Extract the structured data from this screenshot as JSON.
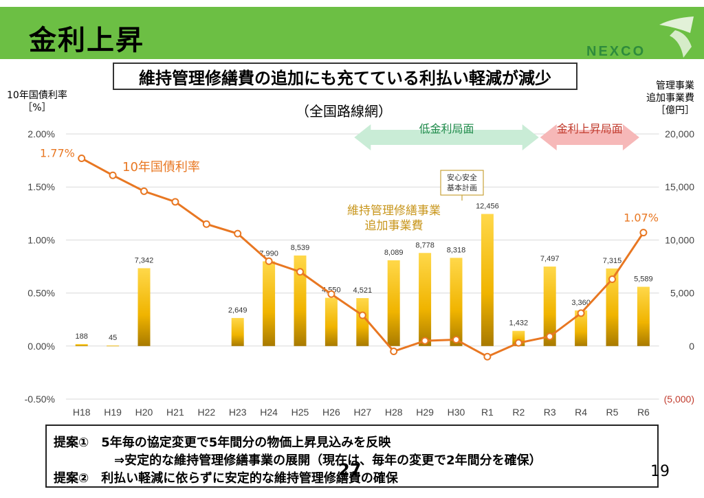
{
  "slide": {
    "title": "金利上昇",
    "logo_text": "NEXCO",
    "subtitle": "維持管理修繕費の追加にも充てている利払い軽減が減少",
    "scope": "（全国路線網）",
    "left_axis_label_line1": "10年国債利率",
    "left_axis_label_line2": "［%］",
    "right_axis_label_line1": "管理事業",
    "right_axis_label_line2": "追加事業費",
    "right_axis_label_line3": "［億円］",
    "page_number": "19",
    "page_overlay": "27"
  },
  "footer": {
    "proposal1": "提案①　5年毎の協定変更で5年間分の物価上昇見込みを反映",
    "proposal1_sub": "⇒安定的な維持管理修繕事業の展開（現在は、毎年の変更で2年間分を確保）",
    "proposal2": "提案②　利払い軽減に依らずに安定的な維持管理修繕費の確保"
  },
  "chart_data": {
    "type": "bar+line",
    "categories": [
      "H18",
      "H19",
      "H20",
      "H21",
      "H22",
      "H23",
      "H24",
      "H25",
      "H26",
      "H27",
      "H28",
      "H29",
      "H30",
      "R1",
      "R2",
      "R3",
      "R4",
      "R5",
      "R6"
    ],
    "left_axis": {
      "ylim": [
        -0.5,
        2.0
      ],
      "ticks": [
        "-0.50%",
        "0.00%",
        "0.50%",
        "1.00%",
        "1.50%",
        "2.00%"
      ]
    },
    "right_axis": {
      "ylim": [
        -5000,
        20000
      ],
      "ticks": [
        "(5,000)",
        "0",
        "5,000",
        "10,000",
        "15,000",
        "20,000"
      ]
    },
    "bar_series": {
      "name": "維持管理修繕事業 追加事業費",
      "name_line1": "維持管理修繕事業",
      "name_line2": "追加事業費",
      "values": [
        188,
        45,
        7342,
        null,
        null,
        2649,
        7990,
        8539,
        4550,
        4521,
        8089,
        8778,
        8318,
        12456,
        1432,
        7497,
        3360,
        7315,
        5589
      ],
      "labels": [
        "188",
        "45",
        "7,342",
        "",
        "",
        "2,649",
        "7,990",
        "8,539",
        "4,550",
        "4,521",
        "8,089",
        "8,778",
        "8,318",
        "12,456",
        "1,432",
        "7,497",
        "3,360",
        "7,315",
        "5,589"
      ],
      "color": "#f0b400"
    },
    "line_series": {
      "name": "10年国債利率",
      "values": [
        1.77,
        1.61,
        1.46,
        1.36,
        1.15,
        1.06,
        0.8,
        0.7,
        0.49,
        0.29,
        -0.05,
        0.05,
        0.06,
        -0.1,
        0.03,
        0.09,
        0.31,
        0.63,
        1.07
      ],
      "first_label": "1.77%",
      "last_label": "1.07%",
      "color": "#e87722"
    },
    "annotations": {
      "low_rate": "低金利局面",
      "rising_rate": "金利上昇局面",
      "plan_box_line1": "安心安全",
      "plan_box_line2": "基本計画"
    },
    "colors": {
      "low_arrow": "#c9ecd6",
      "rising_arrow": "#f6b8b8",
      "rising_text": "#c0392b",
      "low_text": "#1e8a4a",
      "negative_tick": "#c0392b"
    }
  }
}
